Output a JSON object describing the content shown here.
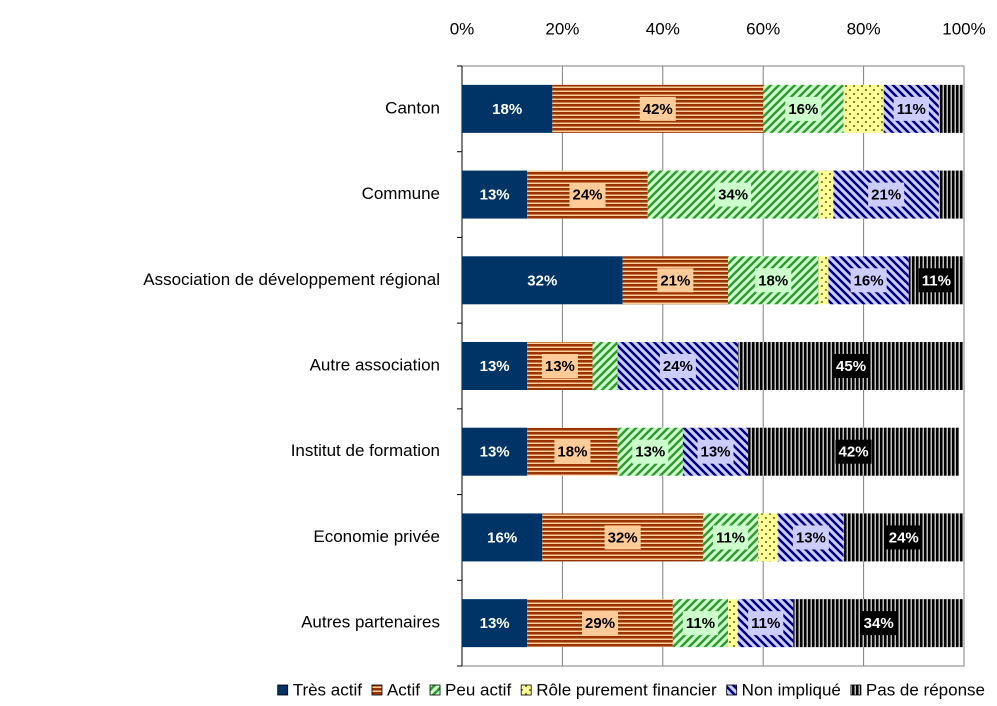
{
  "chart_data": {
    "type": "stacked-bar-horizontal",
    "categories": [
      "Canton",
      "Commune",
      "Association de développement régional",
      "Autre association",
      "Institut de formation",
      "Economie privée",
      "Autres partenaires"
    ],
    "xlim": [
      0,
      100
    ],
    "xticks": [
      {
        "value": 0,
        "label": "0%"
      },
      {
        "value": 20,
        "label": "20%"
      },
      {
        "value": 40,
        "label": "40%"
      },
      {
        "value": 60,
        "label": "60%"
      },
      {
        "value": 80,
        "label": "80%"
      },
      {
        "value": 100,
        "label": "100%"
      }
    ],
    "grid": true,
    "legend": "bottom",
    "series": [
      {
        "name": "Très actif",
        "color": "#003366",
        "background": "#003366",
        "pattern": "solid",
        "label_fill": "#003366",
        "label_text": "#ffffff",
        "values": [
          18,
          13,
          32,
          13,
          13,
          16,
          13
        ],
        "value_labels": [
          "18%",
          "13%",
          "32%",
          "13%",
          "13%",
          "16%",
          "13%"
        ]
      },
      {
        "name": "Actif",
        "color": "#993300",
        "background": "#ffcc99",
        "pattern": "horizontal",
        "label_fill": "#ffcc99",
        "label_text": "#000000",
        "values": [
          42,
          24,
          21,
          13,
          18,
          32,
          29
        ],
        "value_labels": [
          "42%",
          "24%",
          "21%",
          "13%",
          "18%",
          "32%",
          "29%"
        ]
      },
      {
        "name": "Peu actif",
        "color": "#339933",
        "background": "#ccffcc",
        "pattern": "diagonal-up",
        "label_fill": "#ccffcc",
        "label_text": "#000000",
        "values": [
          16,
          34,
          18,
          5,
          13,
          11,
          11
        ],
        "value_labels": [
          "16%",
          "34%",
          "18%",
          null,
          "13%",
          "11%",
          "11%"
        ]
      },
      {
        "name": "Rôle purement financier",
        "color": "#666600",
        "background": "#ffff99",
        "pattern": "dots",
        "label_fill": "#ffff99",
        "label_text": "#000000",
        "values": [
          8,
          3,
          2,
          0,
          0,
          4,
          2
        ],
        "value_labels": [
          null,
          null,
          null,
          null,
          null,
          null,
          null
        ]
      },
      {
        "name": "Non impliqué",
        "color": "#000080",
        "background": "#ccccff",
        "pattern": "diagonal-down",
        "label_fill": "#ccccff",
        "label_text": "#000000",
        "values": [
          11,
          21,
          16,
          24,
          13,
          13,
          11
        ],
        "value_labels": [
          "11%",
          "21%",
          "16%",
          "24%",
          "13%",
          "13%",
          "11%"
        ]
      },
      {
        "name": "Pas de réponse",
        "color": "#000000",
        "background": "#c0c0c0",
        "pattern": "vertical",
        "label_fill": "#000000",
        "label_text": "#ffffff",
        "values": [
          5,
          5,
          11,
          45,
          42,
          24,
          34
        ],
        "value_labels": [
          null,
          null,
          "11%",
          "45%",
          "42%",
          "24%",
          "34%"
        ]
      }
    ]
  }
}
